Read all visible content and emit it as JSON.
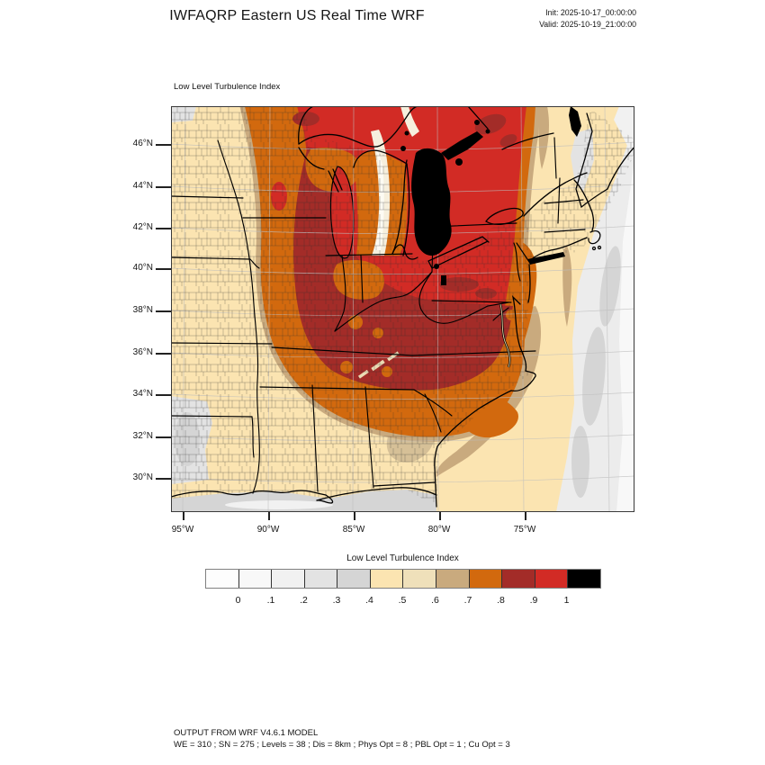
{
  "header": {
    "title": "IWFAQRP Eastern US Real Time WRF",
    "init_label": "Init: 2025-10-17_00:00:00",
    "valid_label": "Valid: 2025-10-19_21:00:00"
  },
  "map": {
    "panel_label": "Low Level Turbulence Index",
    "lat_ticks": [
      "46°N",
      "44°N",
      "42°N",
      "40°N",
      "38°N",
      "36°N",
      "34°N",
      "32°N",
      "30°N"
    ],
    "lon_ticks": [
      "95°W",
      "90°W",
      "85°W",
      "80°W",
      "75°W"
    ]
  },
  "colorbar": {
    "title": "Low Level Turbulence Index",
    "labels": [
      "0",
      ".1",
      ".2",
      ".3",
      ".4",
      ".5",
      ".6",
      ".7",
      ".8",
      ".9",
      "1"
    ],
    "colors": [
      "#fdfdfd",
      "#f8f8f8",
      "#f1f1f1",
      "#e3e3e3",
      "#d5d5d5",
      "#fbe4b1",
      "#efe0ba",
      "#c9aa7e",
      "#d2690e",
      "#a32c28",
      "#d22b25",
      "#000000"
    ]
  },
  "footer": {
    "line1": "OUTPUT FROM WRF V4.6.1 MODEL",
    "line2": "WE = 310 ; SN = 275 ; Levels = 38 ; Dis = 8km ; Phys Opt = 8 ; PBL Opt = 1 ; Cu Opt = 3"
  },
  "palette": [
    "#fdfdfd",
    "#f8f8f8",
    "#f1f1f1",
    "#e3e3e3",
    "#d5d5d5",
    "#fbe4b1",
    "#efe0ba",
    "#c9aa7e",
    "#d2690e",
    "#a32c28",
    "#d22b25",
    "#000000"
  ],
  "chart_data": {
    "type": "heatmap",
    "title": "Low Level Turbulence Index",
    "scale_values": [
      0,
      0.1,
      0.2,
      0.3,
      0.4,
      0.5,
      0.6,
      0.7,
      0.8,
      0.9,
      1
    ],
    "lat_range": [
      29,
      47.5
    ],
    "lon_range": [
      -95.6,
      -72
    ],
    "notes": "Turbulence index field: max (black, ~1) over Lake Huron/Georgian Bay; 0.8-1 (reds) over Great Lakes, Ohio Valley, KY/TN/VA, NY/PA, Ontario; 0.7-0.8 (orange) ring through WI, MO, TN/AL/GA, Carolinas coast, NJ/Hudson; 0.4-0.7 (creams/tan) over western plains, Gulf states, New England and offshore band; <0.4 (grays) far offshore Atlantic, Gulf waters, Maine, SW corner"
  }
}
